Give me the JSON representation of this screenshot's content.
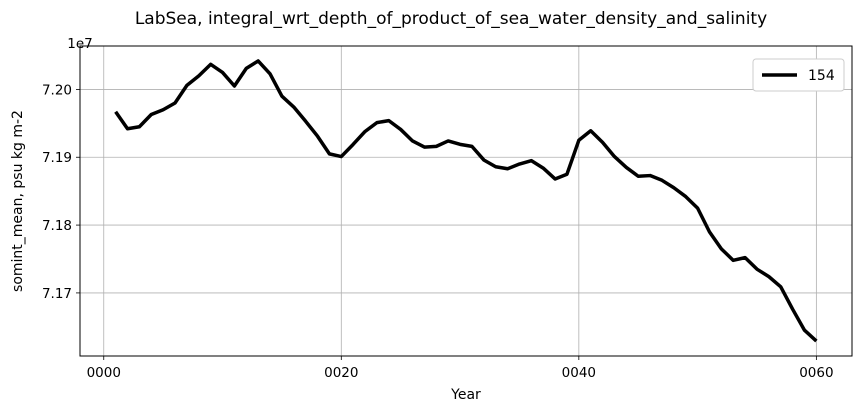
{
  "chart_data": {
    "type": "line",
    "title": "LabSea, integral_wrt_depth_of_product_of_sea_water_density_and_salinity",
    "xlabel": "Year",
    "ylabel": "somint_mean, psu kg m-2",
    "y_offset_label": "1e7",
    "xlim": [
      -2,
      63
    ],
    "ylim": [
      71607000,
      72064000
    ],
    "x_ticks": [
      0,
      20,
      40,
      60
    ],
    "x_tick_labels": [
      "0000",
      "0020",
      "0040",
      "0060"
    ],
    "y_ticks": [
      71700000,
      71800000,
      71900000,
      72000000
    ],
    "y_tick_labels": [
      "7.17",
      "7.18",
      "7.19",
      "7.20"
    ],
    "grid": true,
    "legend_position": "top-right",
    "series": [
      {
        "name": "154",
        "color": "#000000",
        "x": [
          1,
          2,
          3,
          4,
          5,
          6,
          7,
          8,
          9,
          10,
          11,
          12,
          13,
          14,
          15,
          16,
          17,
          18,
          19,
          20,
          21,
          22,
          23,
          24,
          25,
          26,
          27,
          28,
          29,
          30,
          31,
          32,
          33,
          34,
          35,
          36,
          37,
          38,
          39,
          40,
          41,
          42,
          43,
          44,
          45,
          46,
          47,
          48,
          49,
          50,
          51,
          52,
          53,
          54,
          55,
          56,
          57,
          58,
          59,
          60
        ],
        "values": [
          71967000,
          71942000,
          71945000,
          71963000,
          71970000,
          71980000,
          72006000,
          72020000,
          72037000,
          72025000,
          72005000,
          72031000,
          72042000,
          72023000,
          71990000,
          71974000,
          71953000,
          71931000,
          71905000,
          71901000,
          71919000,
          71938000,
          71951000,
          71954000,
          71941000,
          71924000,
          71915000,
          71916000,
          71924000,
          71919000,
          71916000,
          71896000,
          71886000,
          71883000,
          71890000,
          71895000,
          71884000,
          71868000,
          71875000,
          71925000,
          71939000,
          71922000,
          71901000,
          71885000,
          71872000,
          71873000,
          71866000,
          71855000,
          71842000,
          71825000,
          71790000,
          71765000,
          71748000,
          71752000,
          71735000,
          71724000,
          71709000,
          71676000,
          71645000,
          71629000
        ]
      }
    ]
  }
}
